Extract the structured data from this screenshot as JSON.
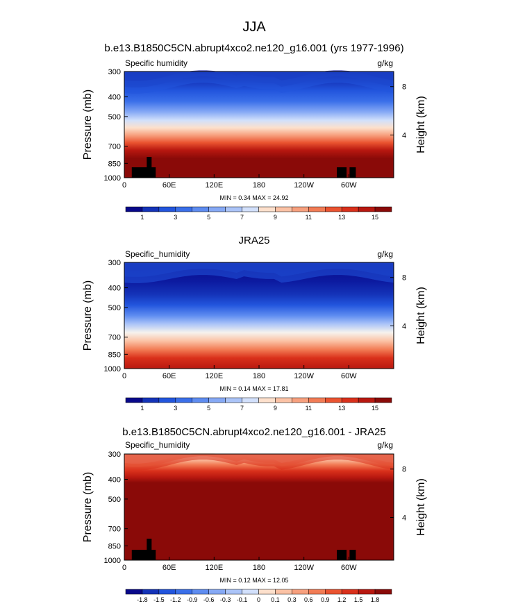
{
  "title": "JJA",
  "chart_data": [
    {
      "type": "heatmap",
      "title": "b.e13.B1850C5CN.abrupt4xco2.ne120_g16.001 (yrs 1977-1996)",
      "left_label": "Specific humidity",
      "units": "g/kg",
      "ylabel": "Pressure (mb)",
      "ylabel_right": "Height (km)",
      "x_ticks": [
        "0",
        "60E",
        "120E",
        "180",
        "120W",
        "60W"
      ],
      "x_tick_values": [
        0,
        60,
        120,
        180,
        240,
        300
      ],
      "xlim": [
        0,
        360
      ],
      "y_ticks": [
        "300",
        "400",
        "500",
        "700",
        "850",
        "1000"
      ],
      "y_tick_values": [
        300,
        400,
        500,
        700,
        850,
        1000
      ],
      "ylim": [
        300,
        1000
      ],
      "height_ticks": [
        "8",
        "4"
      ],
      "height_tick_values": [
        8,
        4
      ],
      "stats": "MIN =   0.34  MAX =  24.92",
      "colorbar_labels": [
        "1",
        "3",
        "5",
        "7",
        "9",
        "11",
        "13",
        "15"
      ],
      "colorbar_levels": [
        0.34,
        24.92
      ],
      "variant": "model"
    },
    {
      "type": "heatmap",
      "title": "JRA25",
      "left_label": "Specific_humidity",
      "units": "g/kg",
      "ylabel": "Pressure (mb)",
      "ylabel_right": "Height (km)",
      "x_ticks": [
        "0",
        "60E",
        "120E",
        "180",
        "120W",
        "60W"
      ],
      "x_tick_values": [
        0,
        60,
        120,
        180,
        240,
        300
      ],
      "xlim": [
        0,
        360
      ],
      "y_ticks": [
        "300",
        "400",
        "500",
        "700",
        "850",
        "1000"
      ],
      "y_tick_values": [
        300,
        400,
        500,
        700,
        850,
        1000
      ],
      "ylim": [
        300,
        1000
      ],
      "height_ticks": [
        "8",
        "4"
      ],
      "height_tick_values": [
        8,
        4
      ],
      "stats": "MIN =   0.14  MAX =  17.81",
      "colorbar_labels": [
        "1",
        "3",
        "5",
        "7",
        "9",
        "11",
        "13",
        "15"
      ],
      "colorbar_levels": [
        0.14,
        17.81
      ],
      "variant": "obs"
    },
    {
      "type": "heatmap",
      "title": "b.e13.B1850C5CN.abrupt4xco2.ne120_g16.001 - JRA25",
      "left_label": "Specific_humidity",
      "units": "g/kg",
      "ylabel": "Pressure (mb)",
      "ylabel_right": "Height (km)",
      "x_ticks": [
        "0",
        "60E",
        "120E",
        "180",
        "120W",
        "60W"
      ],
      "x_tick_values": [
        0,
        60,
        120,
        180,
        240,
        300
      ],
      "xlim": [
        0,
        360
      ],
      "y_ticks": [
        "300",
        "400",
        "500",
        "700",
        "850",
        "1000"
      ],
      "y_tick_values": [
        300,
        400,
        500,
        700,
        850,
        1000
      ],
      "ylim": [
        300,
        1000
      ],
      "height_ticks": [
        "8",
        "4"
      ],
      "height_tick_values": [
        8,
        4
      ],
      "stats": "MIN =   0.12  MAX =  12.05",
      "colorbar_labels": [
        "-1.8",
        "-1.5",
        "-1.2",
        "-0.9",
        "-0.6",
        "-0.3",
        "-0.1",
        "0",
        "0.1",
        "0.3",
        "0.6",
        "0.9",
        "1.2",
        "1.5",
        "1.8"
      ],
      "colorbar_levels": [
        0.12,
        12.05
      ],
      "variant": "diff"
    }
  ],
  "colors": {
    "palette": [
      "#08088a",
      "#1433b8",
      "#2255dd",
      "#3a6fe9",
      "#5e8cf0",
      "#86a9f5",
      "#abc4f8",
      "#d2e0fb",
      "#f6f3ee",
      "#fde0cc",
      "#fbc2a5",
      "#f7a07e",
      "#f27c55",
      "#ea5330",
      "#d9301b",
      "#b81810",
      "#8a0a08"
    ],
    "frame": "#000000",
    "land": "#000000"
  }
}
